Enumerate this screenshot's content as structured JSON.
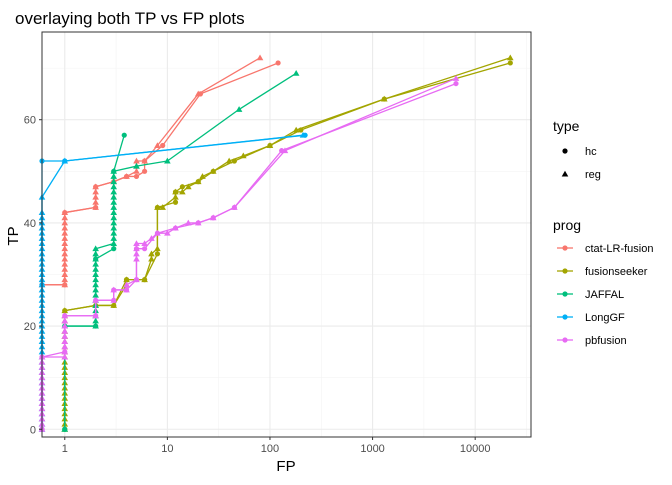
{
  "chart_data": {
    "type": "line",
    "title": "overlaying both TP vs FP plots",
    "xlabel": "FP",
    "ylabel": "TP",
    "xscale": "log10",
    "xlim": [
      0.6,
      35000
    ],
    "ylim": [
      -1.5,
      77
    ],
    "xticks": [
      {
        "v": 1,
        "label": "1"
      },
      {
        "v": 10,
        "label": "10"
      },
      {
        "v": 100,
        "label": "100"
      },
      {
        "v": 1000,
        "label": "1000"
      },
      {
        "v": 10000,
        "label": "10000"
      }
    ],
    "yticks": [
      {
        "v": 0,
        "label": "0"
      },
      {
        "v": 20,
        "label": "20"
      },
      {
        "v": 40,
        "label": "40"
      },
      {
        "v": 60,
        "label": "60"
      }
    ],
    "grid": true,
    "legend_position": "right",
    "legend_type": {
      "title": "type",
      "items": [
        {
          "label": "hc",
          "shape": "circle"
        },
        {
          "label": "reg",
          "shape": "triangle"
        }
      ]
    },
    "legend_prog": {
      "title": "prog",
      "items": [
        {
          "label": "ctat-LR-fusion",
          "color": "#F8766D"
        },
        {
          "label": "fusionseeker",
          "color": "#A3A500"
        },
        {
          "label": "JAFFAL",
          "color": "#00BF7D"
        },
        {
          "label": "LongGF",
          "color": "#00B0F6"
        },
        {
          "label": "pbfusion",
          "color": "#E76BF3"
        }
      ]
    },
    "series": [
      {
        "prog": "ctat-LR-fusion",
        "type": "reg",
        "color": "#F8766D",
        "points": [
          [
            0.6,
            28
          ],
          [
            1,
            28
          ],
          [
            1,
            29
          ],
          [
            1,
            30
          ],
          [
            1,
            31
          ],
          [
            1,
            32
          ],
          [
            1,
            33
          ],
          [
            1,
            34
          ],
          [
            1,
            35
          ],
          [
            1,
            36
          ],
          [
            1,
            37
          ],
          [
            1,
            38
          ],
          [
            1,
            39
          ],
          [
            1,
            40
          ],
          [
            1,
            41
          ],
          [
            1,
            42
          ],
          [
            2,
            43
          ],
          [
            2,
            44
          ],
          [
            2,
            45
          ],
          [
            2,
            46
          ],
          [
            2,
            47
          ],
          [
            3,
            48
          ],
          [
            4,
            49
          ],
          [
            5,
            50
          ],
          [
            5,
            51
          ],
          [
            5,
            52
          ],
          [
            6,
            52
          ],
          [
            8,
            55
          ],
          [
            20,
            65
          ],
          [
            80,
            72
          ]
        ]
      },
      {
        "prog": "ctat-LR-fusion",
        "type": "hc",
        "color": "#F8766D",
        "points": [
          [
            0.6,
            28
          ],
          [
            1,
            28
          ],
          [
            1,
            42
          ],
          [
            2,
            43
          ],
          [
            2,
            47
          ],
          [
            3,
            48
          ],
          [
            4,
            49
          ],
          [
            5,
            49
          ],
          [
            6,
            50
          ],
          [
            6,
            52
          ],
          [
            9,
            55
          ],
          [
            21,
            65
          ],
          [
            120,
            71
          ]
        ]
      },
      {
        "prog": "fusionseeker",
        "type": "reg",
        "color": "#A3A500",
        "points": [
          [
            1,
            0
          ],
          [
            1,
            1
          ],
          [
            1,
            2
          ],
          [
            1,
            3
          ],
          [
            1,
            4
          ],
          [
            1,
            5
          ],
          [
            1,
            6
          ],
          [
            1,
            7
          ],
          [
            1,
            8
          ],
          [
            1,
            9
          ],
          [
            1,
            10
          ],
          [
            1,
            11
          ],
          [
            1,
            12
          ],
          [
            1,
            13
          ],
          [
            1,
            14
          ],
          [
            1,
            15
          ],
          [
            1,
            16
          ],
          [
            1,
            17
          ],
          [
            1,
            18
          ],
          [
            1,
            19
          ],
          [
            1,
            20
          ],
          [
            1,
            21
          ],
          [
            1,
            22
          ],
          [
            1,
            23
          ],
          [
            2,
            24
          ],
          [
            3,
            24
          ],
          [
            4,
            28
          ],
          [
            4,
            29
          ],
          [
            6,
            29
          ],
          [
            7,
            33
          ],
          [
            7,
            34
          ],
          [
            8,
            35
          ],
          [
            8,
            43
          ],
          [
            9,
            43
          ],
          [
            12,
            45
          ],
          [
            12,
            46
          ],
          [
            14,
            46
          ],
          [
            16,
            47
          ],
          [
            20,
            48
          ],
          [
            22,
            49
          ],
          [
            28,
            50
          ],
          [
            40,
            52
          ],
          [
            55,
            53
          ],
          [
            100,
            55
          ],
          [
            180,
            58
          ],
          [
            1300,
            64
          ],
          [
            22000,
            72
          ]
        ]
      },
      {
        "prog": "fusionseeker",
        "type": "hc",
        "color": "#A3A500",
        "points": [
          [
            1,
            0
          ],
          [
            1,
            23
          ],
          [
            2,
            24
          ],
          [
            3,
            24
          ],
          [
            4,
            29
          ],
          [
            6,
            29
          ],
          [
            8,
            34
          ],
          [
            8,
            43
          ],
          [
            12,
            44
          ],
          [
            12,
            46
          ],
          [
            14,
            47
          ],
          [
            20,
            48
          ],
          [
            28,
            50
          ],
          [
            45,
            52
          ],
          [
            100,
            55
          ],
          [
            200,
            58
          ],
          [
            1300,
            64
          ],
          [
            22000,
            71
          ]
        ]
      },
      {
        "prog": "JAFFAL",
        "type": "reg",
        "color": "#00BF7D",
        "points": [
          [
            1,
            0
          ],
          [
            1,
            20
          ],
          [
            2,
            20
          ],
          [
            2,
            21
          ],
          [
            2,
            22
          ],
          [
            2,
            23
          ],
          [
            2,
            24
          ],
          [
            2,
            25
          ],
          [
            2,
            26
          ],
          [
            2,
            27
          ],
          [
            2,
            28
          ],
          [
            2,
            29
          ],
          [
            2,
            30
          ],
          [
            2,
            31
          ],
          [
            2,
            32
          ],
          [
            2,
            33
          ],
          [
            2,
            34
          ],
          [
            2,
            35
          ],
          [
            3,
            36
          ],
          [
            3,
            37
          ],
          [
            3,
            38
          ],
          [
            3,
            39
          ],
          [
            3,
            40
          ],
          [
            3,
            41
          ],
          [
            3,
            42
          ],
          [
            3,
            43
          ],
          [
            3,
            44
          ],
          [
            3,
            45
          ],
          [
            3,
            46
          ],
          [
            3,
            47
          ],
          [
            3,
            48
          ],
          [
            3,
            49
          ],
          [
            3,
            50
          ],
          [
            5,
            51
          ],
          [
            10,
            52
          ],
          [
            50,
            62
          ],
          [
            180,
            69
          ]
        ]
      },
      {
        "prog": "JAFFAL",
        "type": "hc",
        "color": "#00BF7D",
        "points": [
          [
            1,
            0
          ],
          [
            1,
            20
          ],
          [
            2,
            20
          ],
          [
            2,
            33
          ],
          [
            3,
            35
          ],
          [
            3,
            50
          ],
          [
            3.8,
            57
          ]
        ]
      },
      {
        "prog": "LongGF",
        "type": "reg",
        "color": "#00B0F6",
        "points": [
          [
            0.6,
            0
          ],
          [
            0.6,
            1
          ],
          [
            0.6,
            2
          ],
          [
            0.6,
            3
          ],
          [
            0.6,
            4
          ],
          [
            0.6,
            5
          ],
          [
            0.6,
            6
          ],
          [
            0.6,
            7
          ],
          [
            0.6,
            8
          ],
          [
            0.6,
            9
          ],
          [
            0.6,
            10
          ],
          [
            0.6,
            11
          ],
          [
            0.6,
            12
          ],
          [
            0.6,
            13
          ],
          [
            0.6,
            14
          ],
          [
            0.6,
            15
          ],
          [
            0.6,
            16
          ],
          [
            0.6,
            17
          ],
          [
            0.6,
            18
          ],
          [
            0.6,
            19
          ],
          [
            0.6,
            20
          ],
          [
            0.6,
            21
          ],
          [
            0.6,
            22
          ],
          [
            0.6,
            23
          ],
          [
            0.6,
            24
          ],
          [
            0.6,
            25
          ],
          [
            0.6,
            26
          ],
          [
            0.6,
            27
          ],
          [
            0.6,
            28
          ],
          [
            0.6,
            29
          ],
          [
            0.6,
            30
          ],
          [
            0.6,
            31
          ],
          [
            0.6,
            32
          ],
          [
            0.6,
            33
          ],
          [
            0.6,
            34
          ],
          [
            0.6,
            35
          ],
          [
            0.6,
            36
          ],
          [
            0.6,
            37
          ],
          [
            0.6,
            38
          ],
          [
            0.6,
            39
          ],
          [
            0.6,
            40
          ],
          [
            0.6,
            41
          ],
          [
            0.6,
            42
          ],
          [
            0.6,
            45
          ],
          [
            1,
            52
          ],
          [
            210,
            57
          ]
        ]
      },
      {
        "prog": "LongGF",
        "type": "hc",
        "color": "#00B0F6",
        "points": [
          [
            0.6,
            0
          ],
          [
            0.6,
            28
          ],
          [
            0.6,
            52
          ],
          [
            1,
            52
          ],
          [
            220,
            57
          ]
        ]
      },
      {
        "prog": "pbfusion",
        "type": "reg",
        "color": "#E76BF3",
        "points": [
          [
            0.6,
            0
          ],
          [
            0.6,
            1
          ],
          [
            0.6,
            2
          ],
          [
            0.6,
            3
          ],
          [
            0.6,
            4
          ],
          [
            0.6,
            5
          ],
          [
            0.6,
            6
          ],
          [
            0.6,
            7
          ],
          [
            0.6,
            8
          ],
          [
            0.6,
            9
          ],
          [
            0.6,
            10
          ],
          [
            0.6,
            11
          ],
          [
            0.6,
            12
          ],
          [
            0.6,
            13
          ],
          [
            0.6,
            14
          ],
          [
            1,
            14
          ],
          [
            1,
            15
          ],
          [
            1,
            16
          ],
          [
            1,
            17
          ],
          [
            1,
            18
          ],
          [
            1,
            19
          ],
          [
            1,
            20
          ],
          [
            1,
            21
          ],
          [
            1,
            22
          ],
          [
            2,
            22
          ],
          [
            2,
            25
          ],
          [
            3,
            25
          ],
          [
            3,
            27
          ],
          [
            4,
            27
          ],
          [
            4,
            28
          ],
          [
            5,
            29
          ],
          [
            5,
            33
          ],
          [
            5,
            34
          ],
          [
            5,
            35
          ],
          [
            5,
            36
          ],
          [
            6,
            36
          ],
          [
            7,
            37
          ],
          [
            8,
            38
          ],
          [
            10,
            38
          ],
          [
            12,
            39
          ],
          [
            16,
            40
          ],
          [
            20,
            40
          ],
          [
            28,
            41
          ],
          [
            45,
            43
          ],
          [
            140,
            54
          ],
          [
            6500,
            68
          ]
        ]
      },
      {
        "prog": "pbfusion",
        "type": "hc",
        "color": "#E76BF3",
        "points": [
          [
            0.6,
            0
          ],
          [
            0.6,
            14
          ],
          [
            1,
            15
          ],
          [
            1,
            22
          ],
          [
            2,
            22
          ],
          [
            2,
            25
          ],
          [
            3,
            25
          ],
          [
            3,
            27
          ],
          [
            4,
            27
          ],
          [
            5,
            29
          ],
          [
            5,
            35
          ],
          [
            6,
            35
          ],
          [
            8,
            38
          ],
          [
            12,
            39
          ],
          [
            20,
            40
          ],
          [
            28,
            41
          ],
          [
            45,
            43
          ],
          [
            130,
            54
          ],
          [
            6500,
            67
          ]
        ]
      }
    ]
  }
}
